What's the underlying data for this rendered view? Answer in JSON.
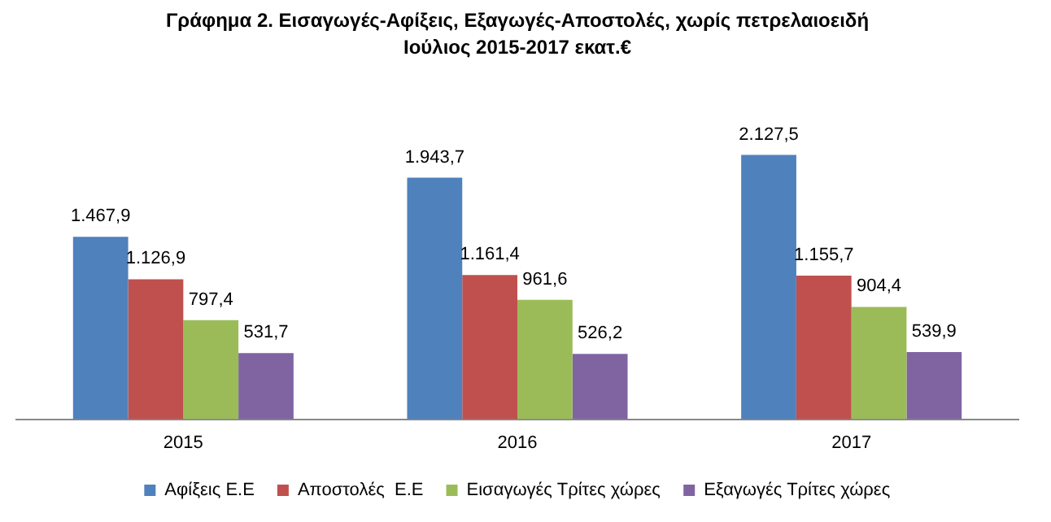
{
  "chart_data": {
    "type": "bar",
    "title": "Γράφημα 2. Εισαγωγές-Αφίξεις, Εξαγωγές-Αποστολές, χωρίς πετρελαιοειδή",
    "subtitle": "Ιούλιος 2015-2017 εκατ.€",
    "categories": [
      "2015",
      "2016",
      "2017"
    ],
    "series": [
      {
        "name": "Αφίξεις Ε.Ε",
        "color": "#4f81bd",
        "values": [
          1467.9,
          1943.7,
          2127.5
        ],
        "value_labels": [
          "1.467,9",
          "1.943,7",
          "2.127,5"
        ]
      },
      {
        "name": "Αποστολές  Ε.Ε",
        "color": "#c0504d",
        "values": [
          1126.9,
          1161.4,
          1155.7
        ],
        "value_labels": [
          "1.126,9",
          "1.161,4",
          "1.155,7"
        ]
      },
      {
        "name": "Εισαγωγές Τρίτες χώρες",
        "color": "#9bbb59",
        "values": [
          797.4,
          961.6,
          904.4
        ],
        "value_labels": [
          "797,4",
          "961,6",
          "904,4"
        ]
      },
      {
        "name": "Εξαγωγές Τρίτες χώρες",
        "color": "#8064a2",
        "values": [
          531.7,
          526.2,
          539.9
        ],
        "value_labels": [
          "531,7",
          "526,2",
          "539,9"
        ]
      }
    ],
    "legend": "bottom",
    "grid": false,
    "tick_labels": "x"
  }
}
